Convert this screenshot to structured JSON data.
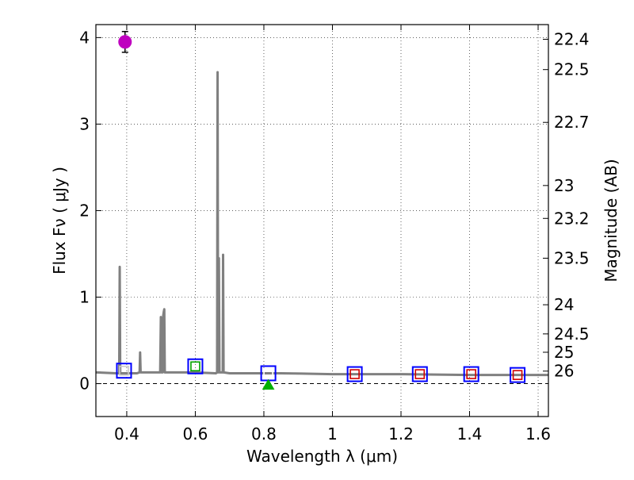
{
  "chart_data": {
    "type": "line",
    "xlabel": "Wavelength  λ (μm)",
    "ylabel": "Flux  Fν  ( μJy )",
    "y2label": "Magnitude (AB)",
    "xlim": [
      0.31,
      1.63
    ],
    "ylim": [
      -0.38,
      4.15
    ],
    "xticks": [
      0.4,
      0.6,
      0.8,
      1.0,
      1.2,
      1.4,
      1.6
    ],
    "xtick_labels": [
      "0.4",
      "0.6",
      "0.8",
      "1",
      "1.2",
      "1.4",
      "1.6"
    ],
    "yticks": [
      0,
      1,
      2,
      3,
      4
    ],
    "ytick_labels": [
      "0",
      "1",
      "2",
      "3",
      "4"
    ],
    "grid": true,
    "right_axis_ticks": [
      {
        "label": "22.4",
        "flux": 3.98
      },
      {
        "label": "22.5",
        "flux": 3.63
      },
      {
        "label": "22.7",
        "flux": 3.02
      },
      {
        "label": "23",
        "flux": 2.29
      },
      {
        "label": "23.2",
        "flux": 1.91
      },
      {
        "label": "23.5",
        "flux": 1.45
      },
      {
        "label": "24",
        "flux": 0.912
      },
      {
        "label": "24.5",
        "flux": 0.575
      },
      {
        "label": "25",
        "flux": 0.363
      },
      {
        "label": "26",
        "flux": 0.145
      }
    ],
    "series": [
      {
        "name": "model-spectrum",
        "color": "#808080",
        "points": [
          [
            0.31,
            0.13
          ],
          [
            0.37,
            0.12
          ],
          [
            0.378,
            0.12
          ],
          [
            0.3795,
            1.35
          ],
          [
            0.381,
            0.12
          ],
          [
            0.43,
            0.12
          ],
          [
            0.4375,
            0.13
          ],
          [
            0.439,
            0.36
          ],
          [
            0.4405,
            0.13
          ],
          [
            0.49,
            0.13
          ],
          [
            0.4975,
            0.13
          ],
          [
            0.4995,
            0.77
          ],
          [
            0.5015,
            0.13
          ],
          [
            0.5045,
            0.13
          ],
          [
            0.5065,
            0.79
          ],
          [
            0.508,
            0.83
          ],
          [
            0.5095,
            0.86
          ],
          [
            0.511,
            0.13
          ],
          [
            0.6,
            0.13
          ],
          [
            0.66,
            0.12
          ],
          [
            0.6635,
            0.13
          ],
          [
            0.665,
            3.6
          ],
          [
            0.6665,
            0.13
          ],
          [
            0.6688,
            1.45
          ],
          [
            0.6705,
            0.13
          ],
          [
            0.68,
            0.13
          ],
          [
            0.681,
            1.49
          ],
          [
            0.6825,
            0.13
          ],
          [
            0.7,
            0.12
          ],
          [
            0.85,
            0.12
          ],
          [
            1.0,
            0.11
          ],
          [
            1.2,
            0.11
          ],
          [
            1.4,
            0.1
          ],
          [
            1.63,
            0.1
          ]
        ]
      }
    ],
    "markers": [
      {
        "name": "observed-point",
        "shape": "circle",
        "x": 0.395,
        "y": 3.95,
        "yerr": 0.12,
        "fill": "#bf00bf"
      },
      {
        "name": "filter-box-0.39",
        "shape": "square",
        "x": 0.392,
        "y": 0.15,
        "edge": "#0000ff",
        "inner": "#c8c8c8"
      },
      {
        "name": "filter-box-0.60",
        "shape": "square",
        "x": 0.6,
        "y": 0.2,
        "edge": "#0000ff",
        "inner": "#00a000"
      },
      {
        "name": "filter-box-0.81",
        "shape": "square",
        "x": 0.813,
        "y": 0.12,
        "edge": "#0000ff",
        "inner": "#ffffff"
      },
      {
        "name": "filter-box-1.06",
        "shape": "square",
        "x": 1.065,
        "y": 0.11,
        "edge": "#0000ff",
        "inner": "#d00000"
      },
      {
        "name": "filter-box-1.26",
        "shape": "square",
        "x": 1.255,
        "y": 0.11,
        "edge": "#0000ff",
        "inner": "#d00000"
      },
      {
        "name": "filter-box-1.41",
        "shape": "square",
        "x": 1.405,
        "y": 0.11,
        "edge": "#0000ff",
        "inner": "#d00000"
      },
      {
        "name": "filter-box-1.54",
        "shape": "square",
        "x": 1.54,
        "y": 0.1,
        "edge": "#0000ff",
        "inner": "#d00000"
      },
      {
        "name": "upper-limit-triangle",
        "shape": "triangle",
        "x": 0.813,
        "y": -0.01,
        "fill": "#00b000"
      }
    ]
  }
}
